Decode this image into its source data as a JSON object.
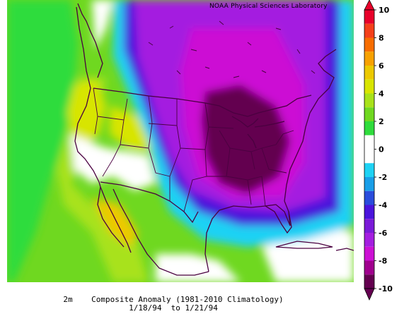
{
  "credit": "NOAA Physical Sciences Laboratory",
  "caption_line1": "2m    Composite Anomaly (1981-2010 Climatology)",
  "caption_line2": "1/18/94  to 1/21/94",
  "colorbar": {
    "labels": [
      "10",
      "8",
      "6",
      "4",
      "2",
      "0",
      "-2",
      "-4",
      "-6",
      "-8",
      "-10"
    ],
    "levels": [
      {
        "from": 9,
        "to": 10,
        "color": "#e8002a"
      },
      {
        "from": 8,
        "to": 9,
        "color": "#f4401a"
      },
      {
        "from": 7,
        "to": 8,
        "color": "#f76d00"
      },
      {
        "from": 6,
        "to": 7,
        "color": "#f7a100"
      },
      {
        "from": 5,
        "to": 6,
        "color": "#ecc900"
      },
      {
        "from": 4,
        "to": 5,
        "color": "#d8e500"
      },
      {
        "from": 3,
        "to": 4,
        "color": "#a8e21a"
      },
      {
        "from": 2,
        "to": 3,
        "color": "#6fd820"
      },
      {
        "from": 1,
        "to": 2,
        "color": "#2fdc3c"
      },
      {
        "from": -1,
        "to": 1,
        "color": "#ffffff"
      },
      {
        "from": -2,
        "to": -1,
        "color": "#1ed2f4"
      },
      {
        "from": -3,
        "to": -2,
        "color": "#199ee8"
      },
      {
        "from": -4,
        "to": -3,
        "color": "#2a4cdc"
      },
      {
        "from": -5,
        "to": -4,
        "color": "#4a14dc"
      },
      {
        "from": -6,
        "to": -5,
        "color": "#7a1ad8"
      },
      {
        "from": -7,
        "to": -6,
        "color": "#a41ee0"
      },
      {
        "from": -8,
        "to": -7,
        "color": "#cc10d4"
      },
      {
        "from": -9,
        "to": -8,
        "color": "#a0008e"
      },
      {
        "from": -10,
        "to": -9,
        "color": "#640050"
      }
    ]
  }
}
